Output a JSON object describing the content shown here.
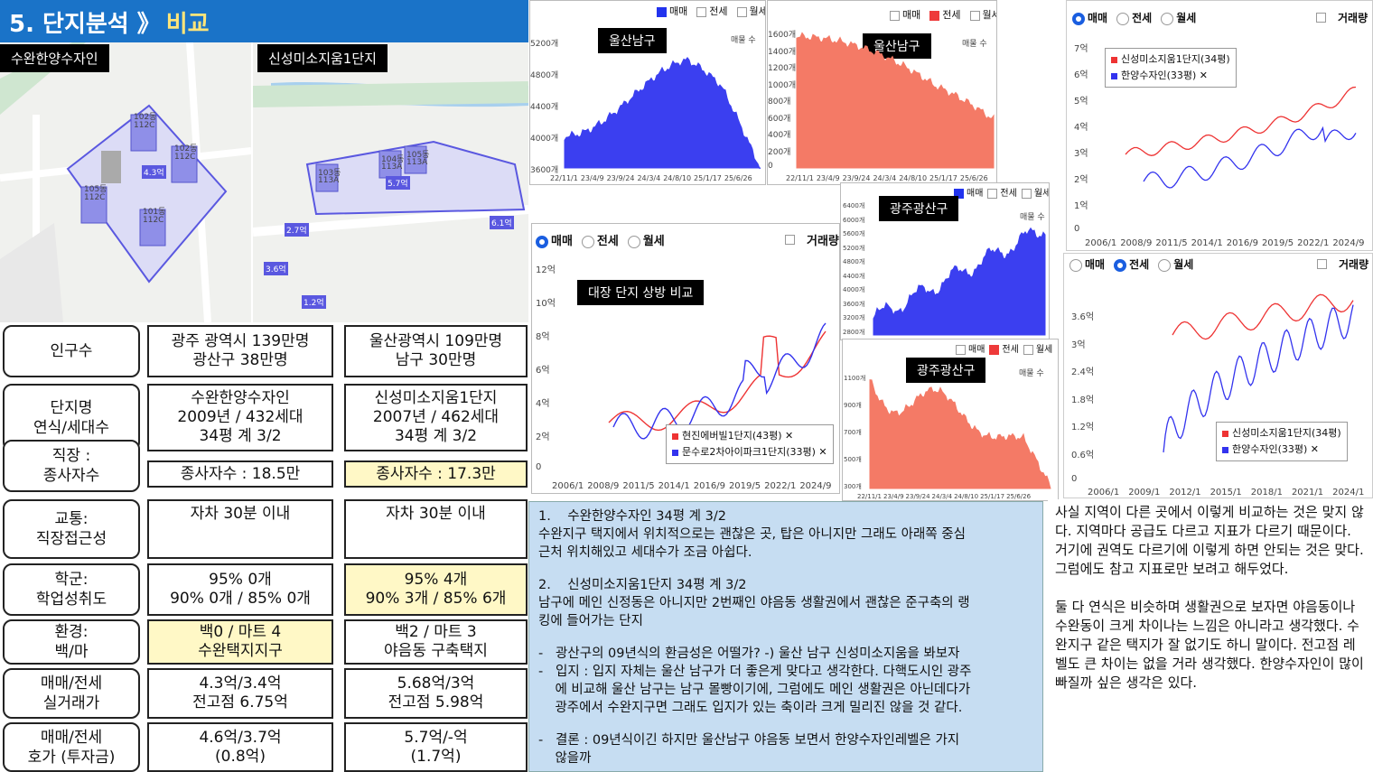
{
  "header": {
    "title": "5. 단지분석 》",
    "subtitle": "비교"
  },
  "maps": {
    "left_label": "수완한양수자인",
    "right_label": "신성미소지움1단지",
    "left_tags": [
      "102동",
      "112C",
      "102동",
      "112C",
      "105동",
      "112C",
      "101동",
      "112C",
      "4.3억"
    ],
    "right_tags": [
      "103동",
      "113A",
      "104동",
      "113A",
      "105동",
      "113A",
      "5.7억",
      "2.7억",
      "3.6억",
      "1.2억",
      "6.1억"
    ]
  },
  "table": {
    "rows": [
      {
        "label": "인구수",
        "a": "광주 광역시 139만명\n광산구 38만명",
        "b": "울산광역시 109만명\n남구 30만명"
      },
      {
        "label": "단지명\n연식/세대수",
        "a": "수완한양수자인\n2009년 / 432세대\n34평 계 3/2",
        "b": "신성미소지움1단지\n2007년 / 462세대\n34평 계 3/2"
      },
      {
        "label": "직장 :\n종사자수",
        "a": "종사자수 : 18.5만",
        "b": "종사자수 : 17.3만"
      },
      {
        "label": "교통:\n직장접근성",
        "a": "자차 30분 이내",
        "b": "자차 30분 이내"
      },
      {
        "label": "학군:\n학업성취도",
        "a": "95% 0개\n90% 0개 / 85% 0개",
        "b": "95% 4개\n90% 3개 / 85% 6개"
      },
      {
        "label": "환경:\n백/마",
        "a": "백0 / 마트 4\n수완택지지구",
        "b": "백2 / 마트 3\n야음동 구축택지"
      },
      {
        "label": "매매/전세\n실거래가",
        "a": "4.3억/3.4억\n전고점 6.75억",
        "b": "5.68억/3억\n전고점 5.98억"
      },
      {
        "label": "매매/전세\n호가 (투자금)",
        "a": "4.6억/3.7억\n(0.8억)",
        "b": "5.7억/-억\n(1.7억)"
      }
    ]
  },
  "charts": {
    "radio": {
      "sale": "매매",
      "jeonse": "전세",
      "monthly": "월세",
      "volume": "거래량",
      "count": "매물 수"
    },
    "ulsan_sale": {
      "title": "울산남구",
      "yticks": [
        "5200개",
        "4800개",
        "4400개",
        "4000개",
        "3600개"
      ],
      "xticks": [
        "22/11/1",
        "23/4/9",
        "23/9/24",
        "24/3/4",
        "24/8/10",
        "25/1/17",
        "25/6/26"
      ]
    },
    "ulsan_jeonse": {
      "title": "울산남구",
      "yticks": [
        "1600개",
        "1400개",
        "1200개",
        "1000개",
        "800개",
        "600개",
        "400개",
        "200개",
        "0"
      ],
      "xticks": [
        "22/11/1",
        "23/4/9",
        "23/9/24",
        "24/3/4",
        "24/8/10",
        "25/1/17",
        "25/6/26"
      ]
    },
    "gwangju_sale": {
      "title": "광주광산구",
      "yticks": [
        "6400개",
        "6000개",
        "5600개",
        "5200개",
        "4800개",
        "4400개",
        "4000개",
        "3600개",
        "3200개",
        "2800개"
      ]
    },
    "gwangju_jeonse": {
      "title": "광주광산구",
      "yticks": [
        "1100개",
        "900개",
        "700개",
        "500개",
        "300개"
      ],
      "xticks": [
        "22/11/1",
        "23/4/9",
        "23/9/24",
        "24/3/4",
        "24/8/10",
        "25/1/17",
        "25/6/26"
      ]
    },
    "compare": {
      "title": "대장 단지 상방 비교",
      "yticks": [
        "12억",
        "10억",
        "8억",
        "6억",
        "4억",
        "2억",
        "0"
      ],
      "xticks": [
        "2006/1",
        "2008/9",
        "2011/5",
        "2014/1",
        "2016/9",
        "2019/5",
        "2022/1",
        "2024/9"
      ],
      "legend": [
        "현진에버빌1단지(43평)",
        "문수로2차아이파크1단지(33평)"
      ]
    },
    "right_sale": {
      "yticks": [
        "7억",
        "6억",
        "5억",
        "4억",
        "3억",
        "2억",
        "1억",
        "0"
      ],
      "xticks": [
        "2006/1",
        "2008/9",
        "2011/5",
        "2014/1",
        "2016/9",
        "2019/5",
        "2022/1",
        "2024/9"
      ],
      "legend": [
        "신성미소지움1단지(34평)",
        "한양수자인(33평)"
      ]
    },
    "right_jeonse": {
      "yticks": [
        "3.6억",
        "3억",
        "2.4억",
        "1.8억",
        "1.2억",
        "0.6억",
        "0"
      ],
      "xticks": [
        "2006/1",
        "2009/1",
        "2012/1",
        "2015/1",
        "2018/1",
        "2021/1",
        "2024/1"
      ],
      "legend": [
        "신성미소지움1단지(34평)",
        "한양수자인(33평)"
      ]
    }
  },
  "notes": {
    "p1": "1.    수완한양수자인 34평 계 3/2\n수완지구 택지에서 위치적으로는 괜찮은 곳, 탑은 아니지만 그래도 아래쪽 중심\n근처 위치해있고 세대수가 조금 아쉽다.",
    "p2": "2.    신성미소지움1단지 34평 계 3/2\n남구에 메인 신정동은 아니지만 2번째인 야음동 생활권에서 괜찮은 준구축의 랭\n킹에 들어가는 단지",
    "p3": "-   광산구의 09년식의 환금성은 어떨가? -) 울산 남구 신성미소지움을 봐보자\n-   입지 : 입지 자체는 울산 남구가 더 좋은게 맞다고 생각한다. 다핵도시인 광주\n    에 비교해 울산 남구는 남구 몰빵이기에, 그럼에도 메인 생활권은 아닌데다가\n    광주에서 수완지구면 그래도 입지가 있는 축이라 크게 밀리진 않을 것 같다.",
    "p4": "-   결론 : 09년식이긴 하지만 울산남구 야음동 보면서 한양수자인레벨은 가지\n    않을까"
  },
  "right_text": {
    "p1": "사실 지역이 다른 곳에서 이렇게 비교하는 것은 맞지 않다. 지역마다 공급도 다르고 지표가 다르기 때문이다. 거기에 권역도 다르기에 이렇게 하면 안되는 것은 맞다. 그럼에도 참고 지표로만 보려고 해두었다.",
    "p2": "둘 다 연식은 비슷하며 생활권으로 보자면 야음동이나 수완동이 크게 차이나는 느낌은 아니라고 생각했다.  수완지구 같은 택지가 잘 없기도 하니 말이다. 전고점 레벨도 큰 차이는 없을 거라 생각했다. 한양수자인이 많이 빠질까 싶은 생각은 있다."
  },
  "colors": {
    "blue": "#1a73c8",
    "sale": "#3b3ff0",
    "jeonse": "#f47a66",
    "highlight": "#fff8c6",
    "note_bg": "#c6ddf2"
  }
}
